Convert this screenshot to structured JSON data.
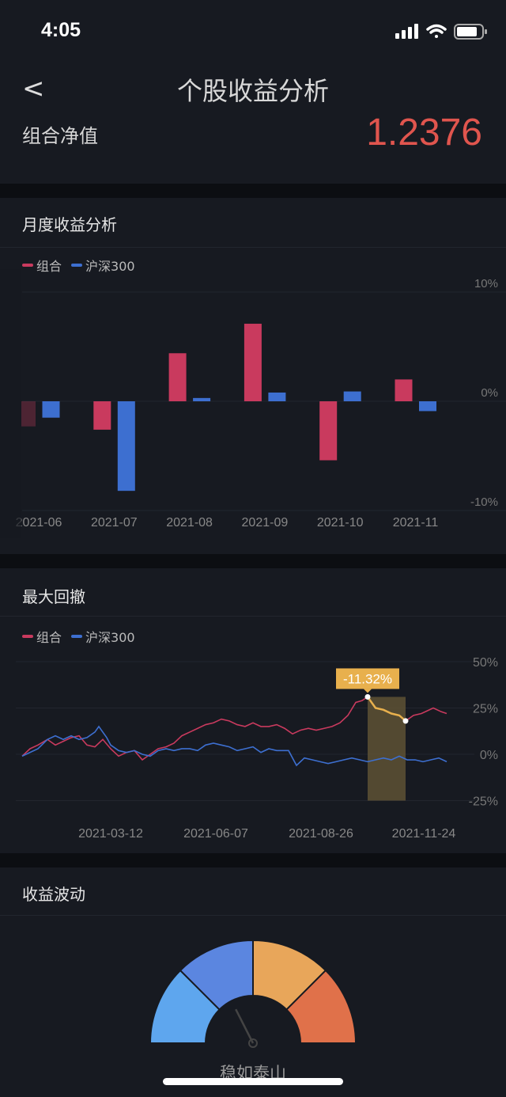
{
  "status": {
    "time": "4:05"
  },
  "header": {
    "back": "<",
    "title": "个股收益分析"
  },
  "summary": {
    "label": "组合净值",
    "value": "1.2376"
  },
  "monthly": {
    "title": "月度收益分析"
  },
  "drawdown": {
    "title": "最大回撤"
  },
  "volatility": {
    "title": "收益波动",
    "level_label": "稳如泰山",
    "level_index": 0.35,
    "segment_colors": [
      "#5ea6ee",
      "#5b86e0",
      "#e8a65a",
      "#e0714a"
    ]
  },
  "colors": {
    "portfolio": "#c93a5e",
    "benchmark": "#3d6fd0",
    "accent": "#e0554e",
    "drawdown": "#e8b04d"
  },
  "chart_data": [
    {
      "type": "bar",
      "title": "月度收益分析",
      "legend": [
        "组合",
        "沪深300"
      ],
      "categories": [
        "2021-06",
        "2021-07",
        "2021-08",
        "2021-09",
        "2021-10",
        "2021-11"
      ],
      "series": [
        {
          "name": "组合",
          "values": [
            -2.3,
            -2.6,
            4.4,
            7.1,
            -5.4,
            2.0
          ]
        },
        {
          "name": "沪深300",
          "values": [
            -1.5,
            -8.2,
            0.3,
            0.8,
            0.9,
            -0.9
          ]
        }
      ],
      "yticks": [
        "10%",
        "0%",
        "-10%"
      ],
      "ylim": [
        -10,
        10
      ],
      "unit": "%"
    },
    {
      "type": "line",
      "title": "最大回撤",
      "legend": [
        "组合",
        "沪深300"
      ],
      "xticks": [
        {
          "at": 112,
          "label": "2021-03-12"
        },
        {
          "at": 245,
          "label": "2021-06-07"
        },
        {
          "at": 378,
          "label": "2021-08-26"
        },
        {
          "at": 508,
          "label": "2021-11-24"
        }
      ],
      "xlim": [
        0,
        537
      ],
      "yticks": [
        "50%",
        "25%",
        "0%",
        "-25%"
      ],
      "ylim": [
        -25,
        50
      ],
      "series": [
        {
          "name": "组合",
          "points": [
            [
              0,
              -1
            ],
            [
              10,
              3
            ],
            [
              20,
              5
            ],
            [
              32,
              8
            ],
            [
              42,
              5
            ],
            [
              52,
              7
            ],
            [
              62,
              9
            ],
            [
              72,
              10
            ],
            [
              82,
              5
            ],
            [
              92,
              4
            ],
            [
              102,
              8
            ],
            [
              112,
              3
            ],
            [
              122,
              -1
            ],
            [
              132,
              1
            ],
            [
              142,
              2
            ],
            [
              152,
              -3
            ],
            [
              162,
              0
            ],
            [
              172,
              3
            ],
            [
              182,
              4
            ],
            [
              192,
              6
            ],
            [
              202,
              10
            ],
            [
              212,
              12
            ],
            [
              222,
              14
            ],
            [
              232,
              16
            ],
            [
              242,
              17
            ],
            [
              252,
              19
            ],
            [
              262,
              18
            ],
            [
              272,
              16
            ],
            [
              282,
              15
            ],
            [
              292,
              17
            ],
            [
              302,
              15
            ],
            [
              312,
              15
            ],
            [
              322,
              16
            ],
            [
              332,
              14
            ],
            [
              342,
              11
            ],
            [
              352,
              13
            ],
            [
              362,
              14
            ],
            [
              372,
              13
            ],
            [
              382,
              14
            ],
            [
              392,
              15
            ],
            [
              402,
              17
            ],
            [
              412,
              21
            ],
            [
              422,
              28
            ],
            [
              430,
              29
            ],
            [
              437,
              31
            ],
            [
              447,
              25
            ],
            [
              457,
              24
            ],
            [
              467,
              22
            ],
            [
              477,
              21
            ],
            [
              485,
              18
            ],
            [
              495,
              21
            ],
            [
              505,
              22
            ],
            [
              515,
              24
            ],
            [
              520,
              25
            ],
            [
              530,
              23
            ],
            [
              537,
              22
            ]
          ]
        },
        {
          "name": "沪深300",
          "points": [
            [
              0,
              -1
            ],
            [
              10,
              1
            ],
            [
              20,
              3
            ],
            [
              32,
              8
            ],
            [
              42,
              10
            ],
            [
              52,
              8
            ],
            [
              62,
              10
            ],
            [
              72,
              8
            ],
            [
              82,
              9
            ],
            [
              92,
              12
            ],
            [
              97,
              15
            ],
            [
              107,
              9
            ],
            [
              112,
              5
            ],
            [
              122,
              2
            ],
            [
              132,
              1
            ],
            [
              142,
              2
            ],
            [
              152,
              0
            ],
            [
              162,
              -1
            ],
            [
              172,
              2
            ],
            [
              182,
              3
            ],
            [
              192,
              2
            ],
            [
              202,
              3
            ],
            [
              212,
              3
            ],
            [
              222,
              2
            ],
            [
              232,
              5
            ],
            [
              242,
              6
            ],
            [
              252,
              5
            ],
            [
              262,
              4
            ],
            [
              272,
              2
            ],
            [
              282,
              3
            ],
            [
              292,
              4
            ],
            [
              302,
              1
            ],
            [
              312,
              3
            ],
            [
              322,
              2
            ],
            [
              337,
              2
            ],
            [
              347,
              -6
            ],
            [
              357,
              -2
            ],
            [
              367,
              -3
            ],
            [
              377,
              -4
            ],
            [
              387,
              -5
            ],
            [
              397,
              -4
            ],
            [
              407,
              -3
            ],
            [
              417,
              -2
            ],
            [
              427,
              -3
            ],
            [
              437,
              -4
            ],
            [
              447,
              -3
            ],
            [
              457,
              -2
            ],
            [
              467,
              -3
            ],
            [
              477,
              -1
            ],
            [
              487,
              -3
            ],
            [
              497,
              -3
            ],
            [
              507,
              -4
            ],
            [
              517,
              -3
            ],
            [
              527,
              -2
            ],
            [
              537,
              -4
            ]
          ]
        }
      ],
      "drawdown": {
        "start": 437,
        "end": 485,
        "label": "-11.32%"
      }
    }
  ]
}
